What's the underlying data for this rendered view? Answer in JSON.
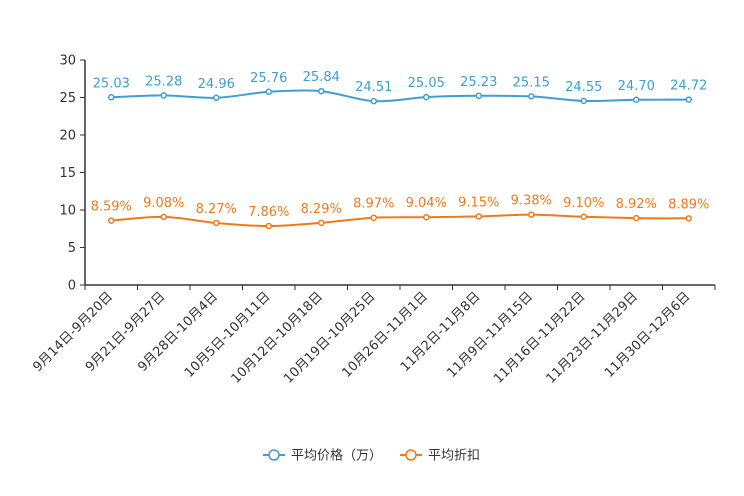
{
  "chart_data": {
    "type": "line",
    "categories": [
      "9月14日-9月20日",
      "9月21日-9月27日",
      "9月28日-10月4日",
      "10月5日-10月11日",
      "10月12日-10月18日",
      "10月19日-10月25日",
      "10月26日-11月1日",
      "11月2日-11月8日",
      "11月9日-11月15日",
      "11月16日-11月22日",
      "11月23日-11月29日",
      "11月30日-12月6日"
    ],
    "ylim": [
      0,
      30
    ],
    "yticks": [
      0,
      5,
      10,
      15,
      20,
      25,
      30
    ],
    "series": [
      {
        "name": "平均价格（万）",
        "color": "#3d9fd3",
        "values": [
          25.03,
          25.28,
          24.96,
          25.76,
          25.84,
          24.51,
          25.05,
          25.23,
          25.15,
          24.55,
          24.7,
          24.72
        ],
        "labels": [
          "25.03",
          "25.28",
          "24.96",
          "25.76",
          "25.84",
          "24.51",
          "25.05",
          "25.23",
          "25.15",
          "24.55",
          "24.70",
          "24.72"
        ]
      },
      {
        "name": "平均折扣",
        "color": "#f07a1a",
        "values": [
          8.59,
          9.08,
          8.27,
          7.86,
          8.29,
          8.97,
          9.04,
          9.15,
          9.38,
          9.1,
          8.92,
          8.89
        ],
        "labels": [
          "8.59%",
          "9.08%",
          "8.27%",
          "7.86%",
          "8.29%",
          "8.97%",
          "9.04%",
          "9.15%",
          "9.38%",
          "9.10%",
          "8.92%",
          "8.89%"
        ]
      }
    ],
    "legend_position": "bottom-center"
  }
}
